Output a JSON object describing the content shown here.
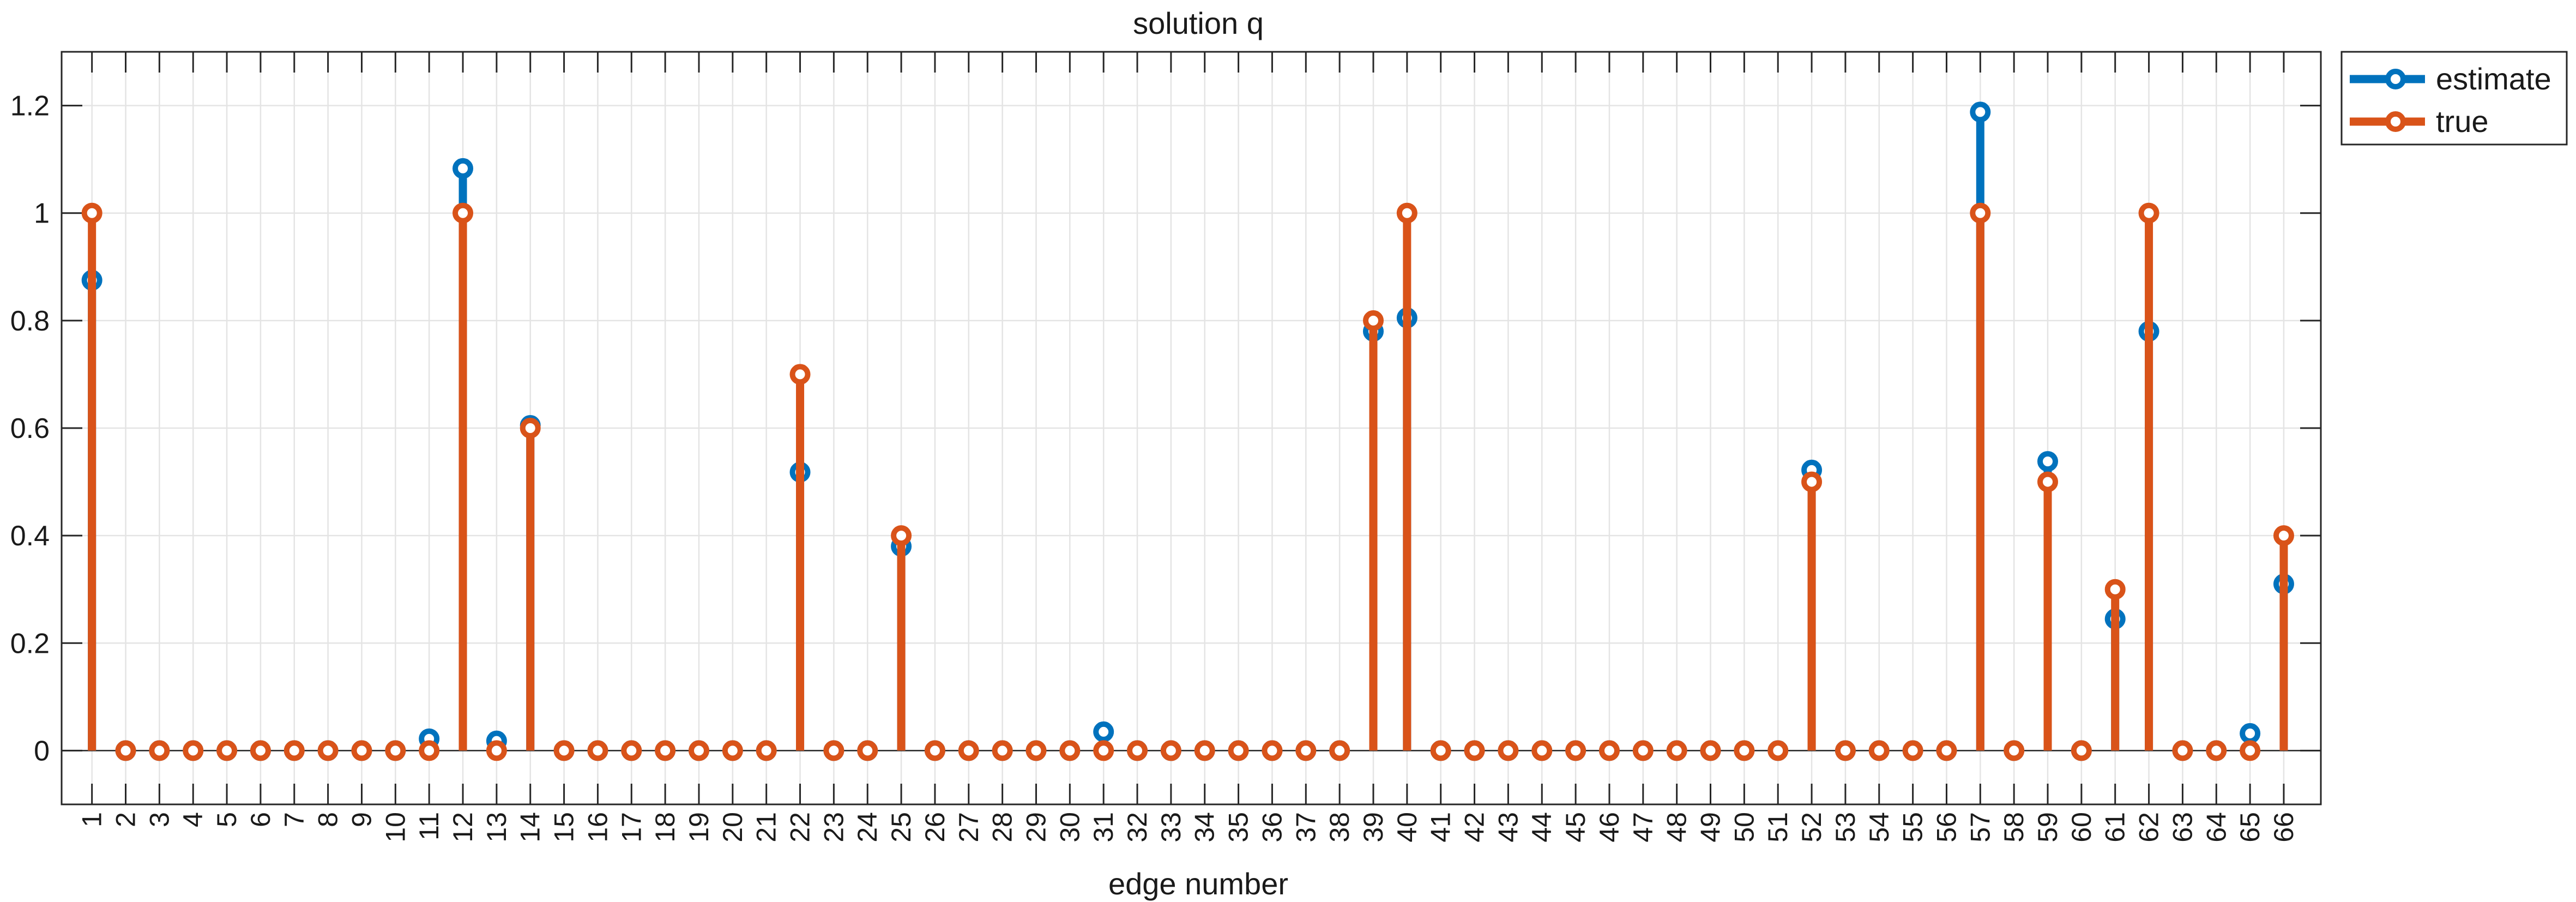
{
  "chart_data": {
    "type": "stem",
    "title": "solution q",
    "xlabel": "edge number",
    "ylabel": "",
    "xlim": [
      0.1,
      67.1
    ],
    "ylim": [
      -0.1,
      1.3
    ],
    "x_ticks": [
      1,
      2,
      3,
      4,
      5,
      6,
      7,
      8,
      9,
      10,
      11,
      12,
      13,
      14,
      15,
      16,
      17,
      18,
      19,
      20,
      21,
      22,
      23,
      24,
      25,
      26,
      27,
      28,
      29,
      30,
      31,
      32,
      33,
      34,
      35,
      36,
      37,
      38,
      39,
      40,
      41,
      42,
      43,
      44,
      45,
      46,
      47,
      48,
      49,
      50,
      51,
      52,
      53,
      54,
      55,
      56,
      57,
      58,
      59,
      60,
      61,
      62,
      63,
      64,
      65,
      66
    ],
    "y_ticks": [
      0,
      0.2,
      0.4,
      0.6,
      0.8,
      1,
      1.2
    ],
    "y_tick_labels": [
      "0",
      "0.2",
      "0.4",
      "0.6",
      "0.8",
      "1",
      "1.2"
    ],
    "grid": true,
    "legend_position": "outside-top-right",
    "x": [
      1,
      2,
      3,
      4,
      5,
      6,
      7,
      8,
      9,
      10,
      11,
      12,
      13,
      14,
      15,
      16,
      17,
      18,
      19,
      20,
      21,
      22,
      23,
      24,
      25,
      26,
      27,
      28,
      29,
      30,
      31,
      32,
      33,
      34,
      35,
      36,
      37,
      38,
      39,
      40,
      41,
      42,
      43,
      44,
      45,
      46,
      47,
      48,
      49,
      50,
      51,
      52,
      53,
      54,
      55,
      56,
      57,
      58,
      59,
      60,
      61,
      62,
      63,
      64,
      65,
      66
    ],
    "series": [
      {
        "name": "estimate",
        "color": "#0072BD",
        "values": [
          0.875,
          0,
          0,
          0,
          0,
          0,
          0,
          0,
          0,
          0,
          0.022,
          1.083,
          0.018,
          0.605,
          0,
          0,
          0,
          0,
          0,
          0,
          0,
          0.518,
          0,
          0,
          0.38,
          0,
          0,
          0,
          0,
          0,
          0.035,
          0,
          0,
          0,
          0,
          0,
          0,
          0,
          0.78,
          0.805,
          0,
          0,
          0,
          0,
          0,
          0,
          0,
          0,
          0,
          0,
          0,
          0.522,
          0,
          0,
          0,
          0,
          1.188,
          0,
          0.538,
          0,
          0.245,
          0.78,
          0,
          0,
          0.032,
          0.31
        ]
      },
      {
        "name": "true",
        "color": "#D95319",
        "values": [
          1,
          0,
          0,
          0,
          0,
          0,
          0,
          0,
          0,
          0,
          0,
          1,
          0,
          0.6,
          0,
          0,
          0,
          0,
          0,
          0,
          0,
          0.7,
          0,
          0,
          0.4,
          0,
          0,
          0,
          0,
          0,
          0,
          0,
          0,
          0,
          0,
          0,
          0,
          0,
          0.8,
          1,
          0,
          0,
          0,
          0,
          0,
          0,
          0,
          0,
          0,
          0,
          0,
          0.5,
          0,
          0,
          0,
          0,
          1,
          0,
          0.5,
          0,
          0.3,
          1,
          0,
          0,
          0,
          0.4
        ]
      }
    ]
  }
}
